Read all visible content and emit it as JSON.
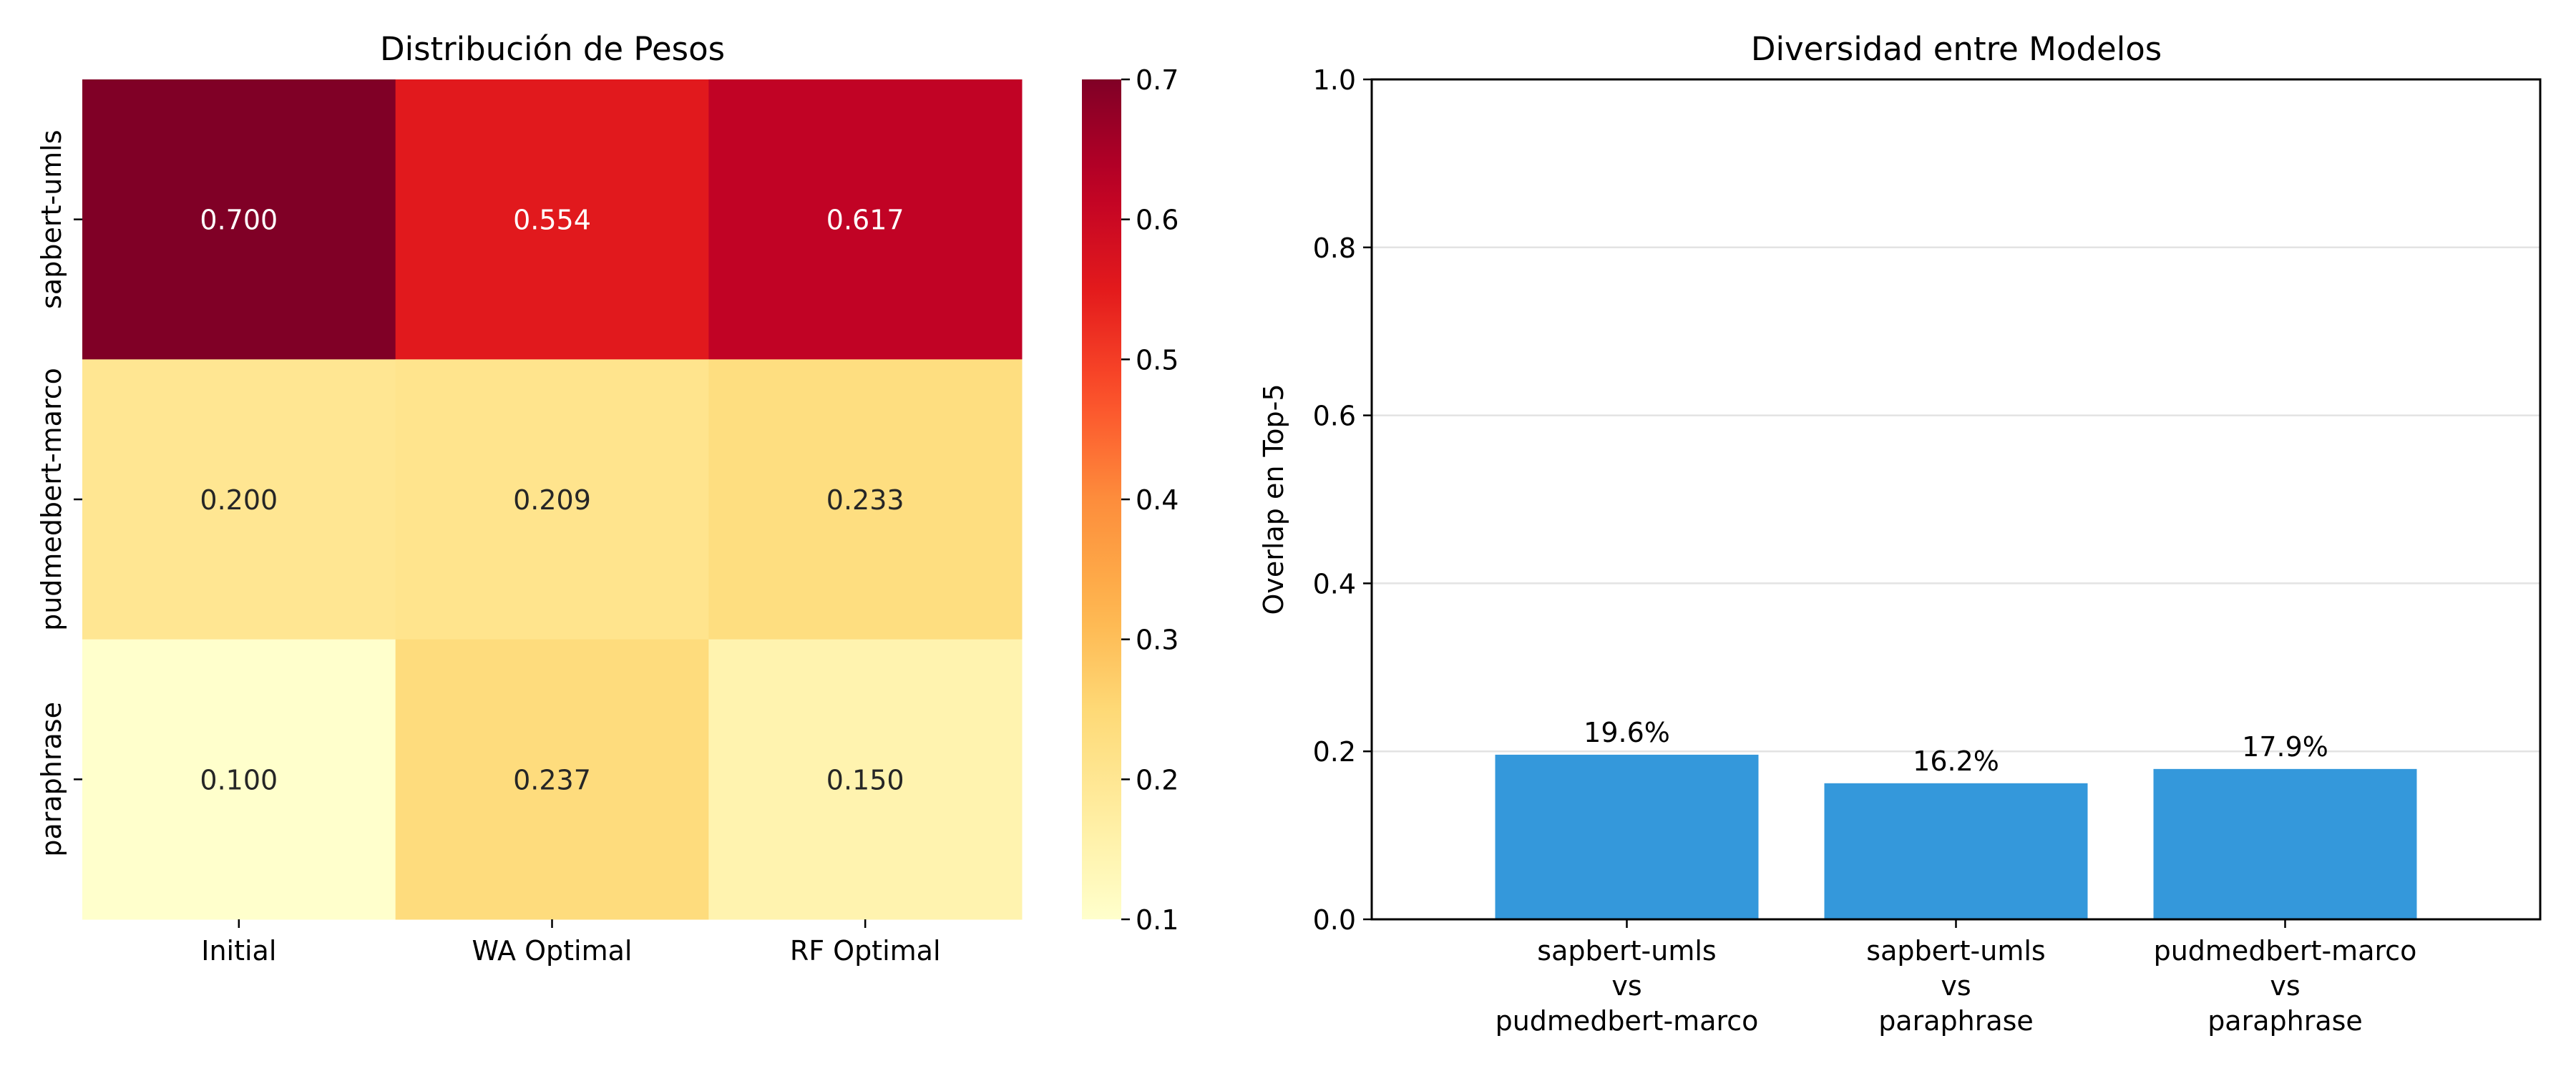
{
  "chart_data": [
    {
      "type": "heatmap",
      "title": "Distribución de Pesos",
      "xlabel": "",
      "ylabel": "",
      "columns": [
        "Initial",
        "WA Optimal",
        "RF Optimal"
      ],
      "rows": [
        "sapbert-umls",
        "pudmedbert-marco",
        "paraphrase"
      ],
      "values": [
        [
          0.7,
          0.554,
          0.617
        ],
        [
          0.2,
          0.209,
          0.233
        ],
        [
          0.1,
          0.237,
          0.15
        ]
      ],
      "cell_labels": [
        [
          "0.700",
          "0.554",
          "0.617"
        ],
        [
          "0.200",
          "0.209",
          "0.233"
        ],
        [
          "0.100",
          "0.237",
          "0.150"
        ]
      ],
      "colorscale": "YlOrRd",
      "vmin": 0.1,
      "vmax": 0.7,
      "colorbar_ticks": [
        0.1,
        0.2,
        0.3,
        0.4,
        0.5,
        0.6,
        0.7
      ],
      "colorbar_tick_labels": [
        "0.1",
        "0.2",
        "0.3",
        "0.4",
        "0.5",
        "0.6",
        "0.7"
      ]
    },
    {
      "type": "bar",
      "title": "Diversidad entre Modelos",
      "xlabel": "",
      "ylabel": "Overlap en Top-5",
      "categories": [
        [
          "sapbert-umls",
          "vs",
          "pudmedbert-marco"
        ],
        [
          "sapbert-umls",
          "vs",
          "paraphrase"
        ],
        [
          "pudmedbert-marco",
          "vs",
          "paraphrase"
        ]
      ],
      "values": [
        0.196,
        0.162,
        0.179
      ],
      "data_labels": [
        "19.6%",
        "16.2%",
        "17.9%"
      ],
      "ylim": [
        0,
        1.0
      ],
      "yticks": [
        0.0,
        0.2,
        0.4,
        0.6,
        0.8,
        1.0
      ],
      "ytick_labels": [
        "0.0",
        "0.2",
        "0.4",
        "0.6",
        "0.8",
        "1.0"
      ],
      "grid": "horizontal",
      "bar_color": "#3498db"
    }
  ]
}
